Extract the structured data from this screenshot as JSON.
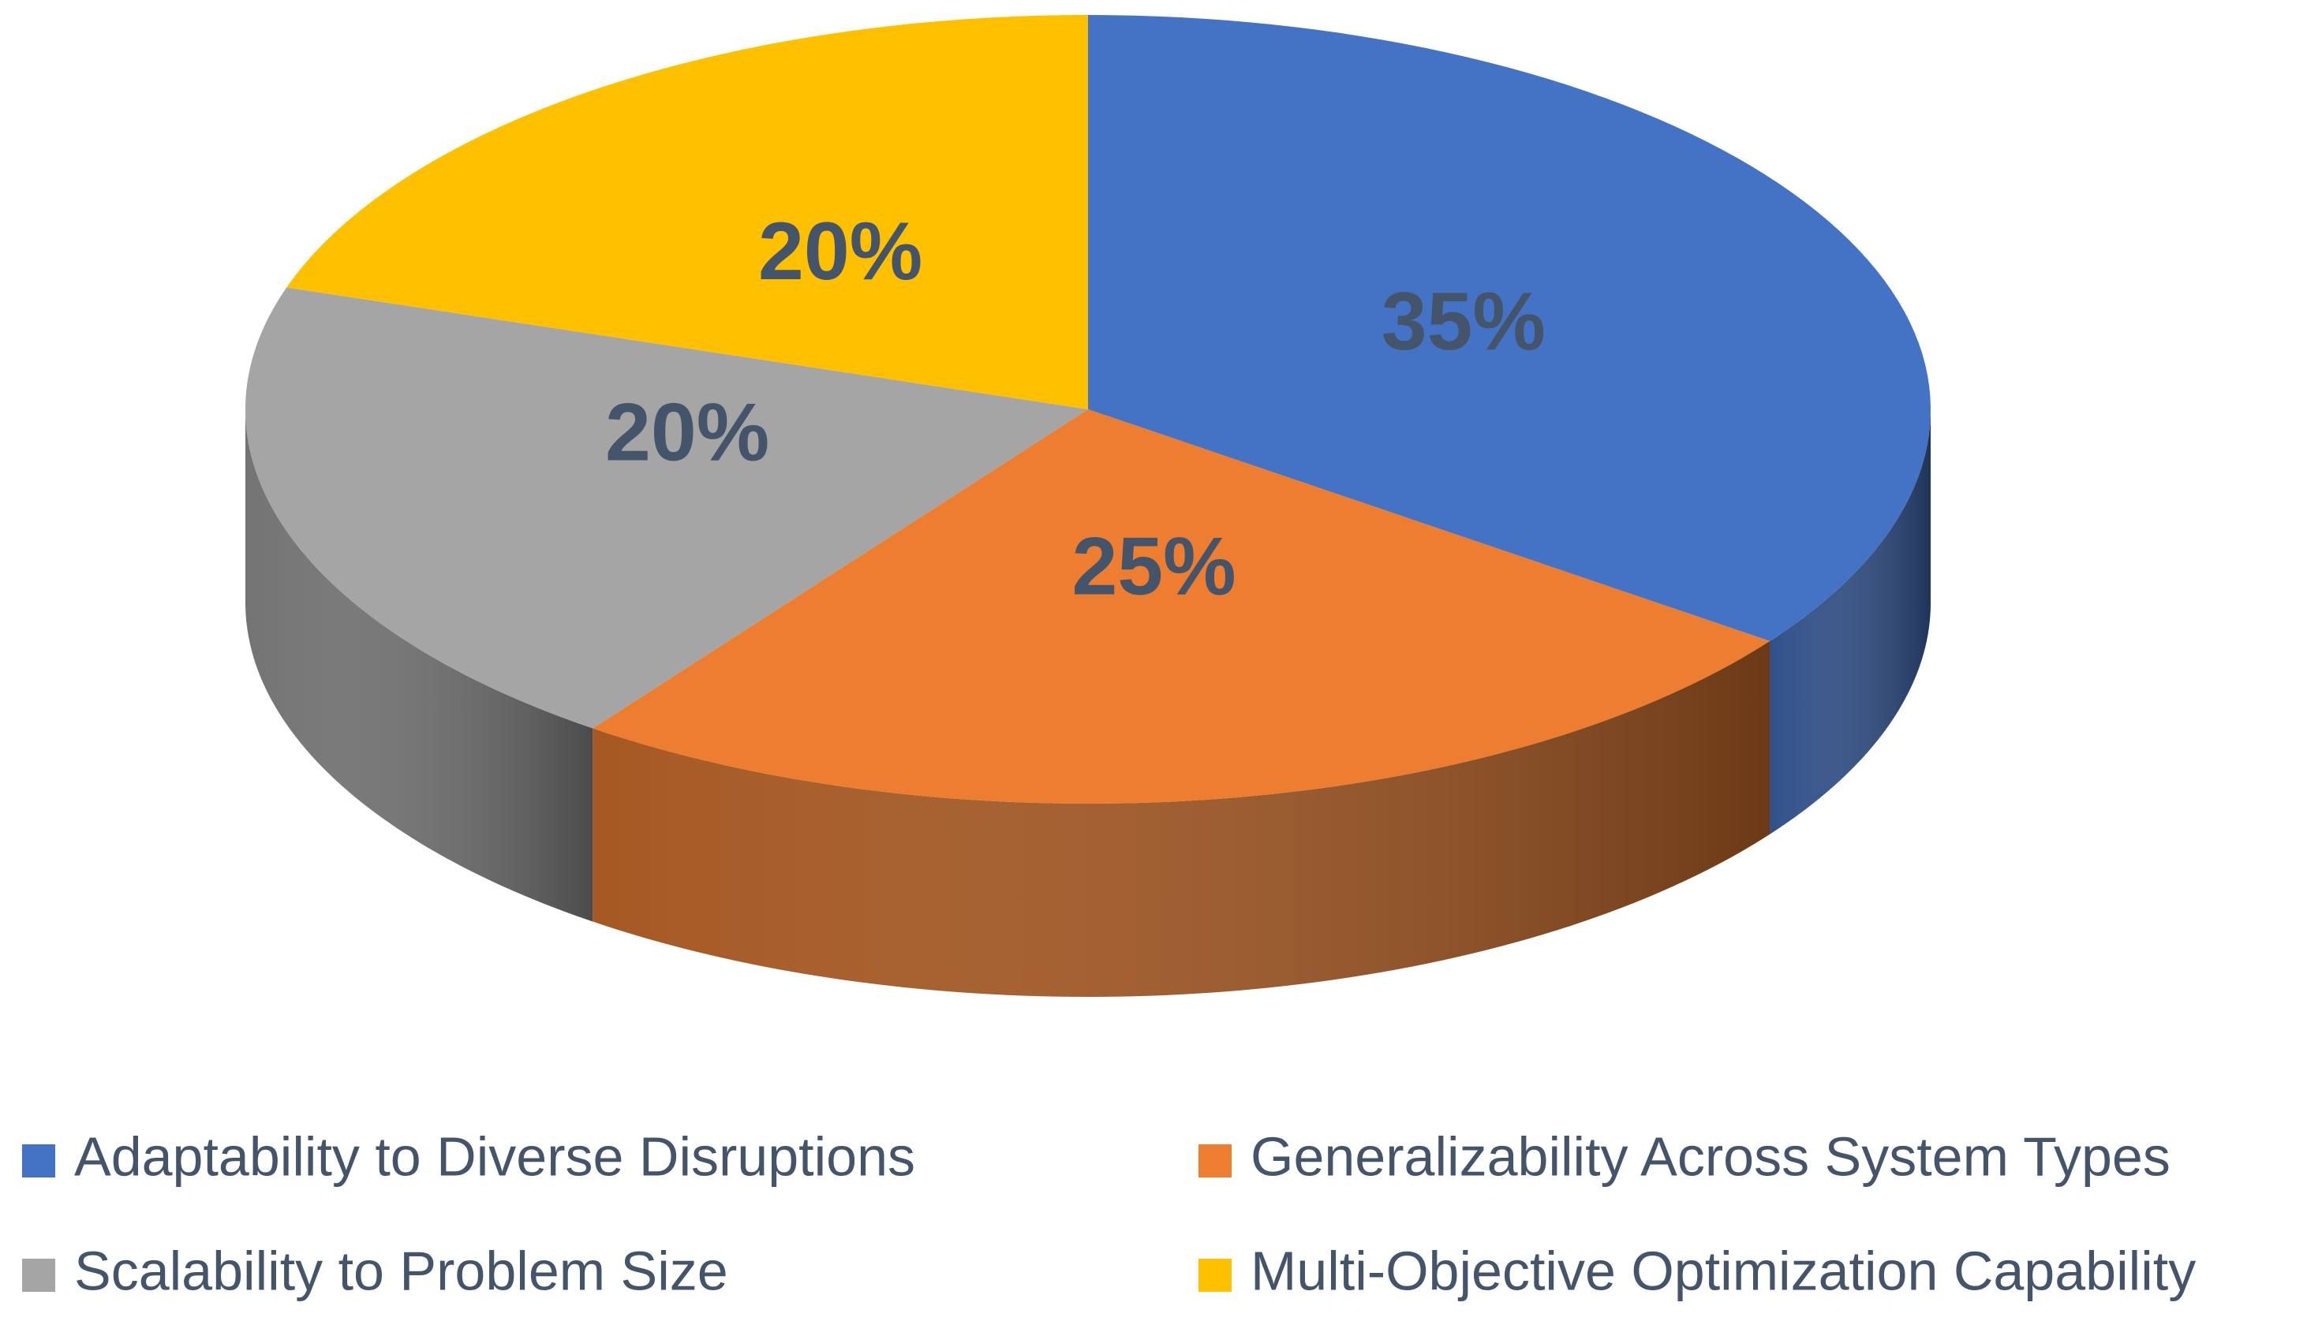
{
  "chart_data": {
    "type": "pie",
    "categories": [
      "Adaptability to Diverse Disruptions",
      "Generalizability Across System Types",
      "Scalability to Problem Size",
      "Multi-Objective Optimization Capability"
    ],
    "values": [
      35,
      25,
      20,
      20
    ],
    "value_labels": [
      "35%",
      "25%",
      "20%",
      "20%"
    ],
    "colors": [
      "#4472c4",
      "#ed7d31",
      "#a5a5a5",
      "#ffc000"
    ],
    "legend": "bottom"
  }
}
